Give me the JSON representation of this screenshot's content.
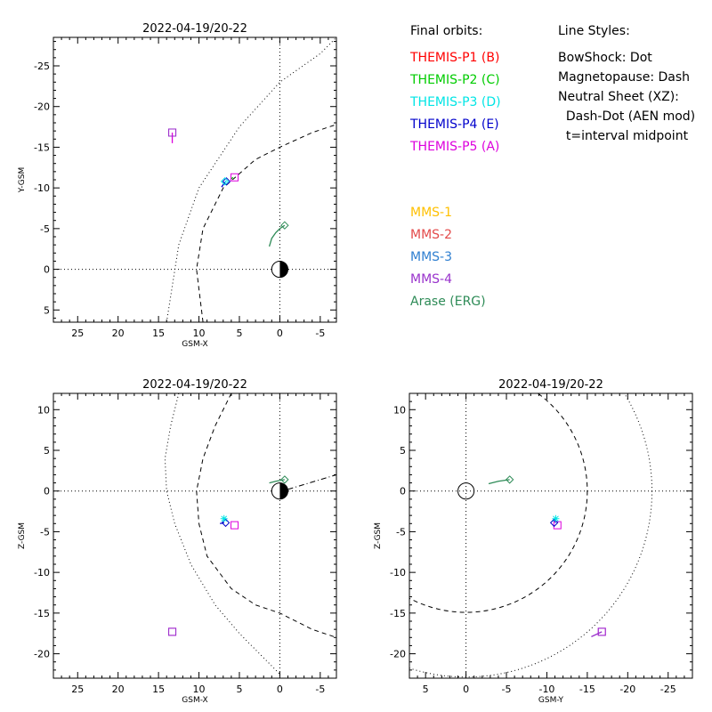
{
  "legend": {
    "orbits_title": "Final orbits:",
    "orbits": [
      {
        "label": "THEMIS-P1 (B)",
        "color": "#ff0000"
      },
      {
        "label": "THEMIS-P2 (C)",
        "color": "#00cc00"
      },
      {
        "label": "THEMIS-P3 (D)",
        "color": "#00e5e5"
      },
      {
        "label": "THEMIS-P4 (E)",
        "color": "#0000cc"
      },
      {
        "label": "THEMIS-P5 (A)",
        "color": "#dd00dd"
      }
    ],
    "missions": [
      {
        "label": "MMS-1",
        "color": "#ffc000"
      },
      {
        "label": "MMS-2",
        "color": "#e34a4a"
      },
      {
        "label": "MMS-3",
        "color": "#2f7fd0"
      },
      {
        "label": "MMS-4",
        "color": "#9933cc"
      },
      {
        "label": "Arase (ERG)",
        "color": "#2e8b57"
      }
    ],
    "styles_title": "Line Styles:",
    "styles": [
      "BowShock: Dot",
      "Magnetopause: Dash",
      "Neutral Sheet (XZ):",
      "  Dash-Dot (AEN mod)",
      "  t=interval midpoint"
    ]
  },
  "chart_data": [
    {
      "type": "scatter",
      "title": "2022-04-19/20-22",
      "xlabel": "GSM-X",
      "ylabel": "Y-GSM",
      "xlim": [
        28,
        -7
      ],
      "ylim": [
        6.5,
        -28.5
      ],
      "xticks": [
        25,
        20,
        15,
        10,
        5,
        0,
        -5
      ],
      "yticks": [
        5,
        0,
        -5,
        -10,
        -15,
        -20,
        -25
      ],
      "bowshock": {
        "x": [
          14,
          12.5,
          10,
          5,
          0,
          -5,
          -7
        ],
        "y": [
          6.5,
          -3,
          -10,
          -17.5,
          -23,
          -26.5,
          -28.5
        ]
      },
      "magnetopause": {
        "x": [
          9.5,
          10.3,
          9.5,
          7,
          3,
          0,
          -4,
          -7
        ],
        "y": [
          6.5,
          0,
          -5,
          -10,
          -13.5,
          -15,
          -16.8,
          -17.8
        ]
      },
      "earth": {
        "x": 0,
        "y": 0,
        "radius": 1
      },
      "tracks": [
        {
          "name": "THEMIS-P5 (A)",
          "color": "#dd00dd",
          "x": [
            13.3,
            13.3
          ],
          "y": [
            -15.5,
            -16.8
          ]
        },
        {
          "name": "THEMIS-P4 (E)",
          "color": "#0000cc",
          "x": [
            7.2,
            6.8
          ],
          "y": [
            -10.1,
            -10.7
          ]
        },
        {
          "name": "THEMIS-P3 (D)",
          "color": "#00e5e5",
          "x": [
            6.9,
            6.6
          ],
          "y": [
            -10.5,
            -10.9
          ]
        },
        {
          "name": "THEMIS-P2 (C)",
          "color": "#00cc00",
          "x": [
            6.0,
            5.8
          ],
          "y": [
            -11.1,
            -11.3
          ]
        },
        {
          "name": "MMS-4",
          "color": "#9933cc",
          "x": [
            13.3
          ],
          "y": [
            -16.8
          ]
        },
        {
          "name": "Arase (ERG)",
          "color": "#2e8b57",
          "x": [
            1.3,
            1.0,
            0.5,
            0.0,
            -0.6
          ],
          "y": [
            -2.8,
            -3.8,
            -4.5,
            -5.0,
            -5.4
          ]
        }
      ],
      "markers": [
        {
          "shape": "square",
          "color": "#dd00dd",
          "x": 13.3,
          "y": -16.8
        },
        {
          "shape": "square",
          "color": "#9933cc",
          "x": 13.3,
          "y": -16.8
        },
        {
          "shape": "square",
          "color": "#dd00dd",
          "x": 5.6,
          "y": -11.3
        },
        {
          "shape": "diamond",
          "color": "#0000cc",
          "x": 6.6,
          "y": -10.8
        },
        {
          "shape": "diamond",
          "color": "#00e5e5",
          "x": 6.8,
          "y": -10.8
        },
        {
          "shape": "diamond",
          "color": "#2e8b57",
          "x": -0.6,
          "y": -5.4
        }
      ]
    },
    {
      "type": "scatter",
      "title": "2022-04-19/20-22",
      "xlabel": "GSM-X",
      "ylabel": "Z-GSM",
      "xlim": [
        28,
        -7
      ],
      "ylim": [
        -23,
        12
      ],
      "xticks": [
        25,
        20,
        15,
        10,
        5,
        0,
        -5
      ],
      "yticks": [
        10,
        5,
        0,
        -5,
        -10,
        -15,
        -20
      ],
      "bowshock": {
        "x": [
          12.5,
          13.5,
          14.2,
          14,
          13,
          11,
          8,
          5,
          2,
          0
        ],
        "y": [
          12,
          8,
          4,
          0,
          -4,
          -9,
          -14,
          -17.5,
          -20.5,
          -22.5
        ]
      },
      "magnetopause": {
        "x": [
          6,
          8,
          9.5,
          10.3,
          10,
          9,
          6,
          3,
          0,
          -4,
          -7
        ],
        "y": [
          12,
          8,
          4,
          0,
          -4,
          -8,
          -12,
          -14,
          -15,
          -17,
          -18
        ]
      },
      "neutral_sheet": {
        "x": [
          -1,
          -3,
          -5,
          -7
        ],
        "y": [
          0.2,
          0.8,
          1.4,
          2.0
        ]
      },
      "earth": {
        "x": 0,
        "y": 0,
        "radius": 1
      },
      "tracks": [
        {
          "name": "Arase (ERG)",
          "color": "#2e8b57",
          "x": [
            1.3,
            0.5,
            -0.6
          ],
          "y": [
            1.0,
            1.2,
            1.4
          ]
        },
        {
          "name": "THEMIS-P4 (E)",
          "color": "#0000cc",
          "x": [
            7.4,
            6.9
          ],
          "y": [
            -4.0,
            -3.9
          ]
        },
        {
          "name": "THEMIS-P3 (D)",
          "color": "#00e5e5",
          "x": [
            7.0,
            6.8
          ],
          "y": [
            -3.8,
            -3.3
          ]
        }
      ],
      "markers": [
        {
          "shape": "square",
          "color": "#dd00dd",
          "x": 5.6,
          "y": -4.2
        },
        {
          "shape": "diamond",
          "color": "#0000cc",
          "x": 6.7,
          "y": -3.9
        },
        {
          "shape": "asterisk",
          "color": "#00e5e5",
          "x": 6.9,
          "y": -3.4
        },
        {
          "shape": "square",
          "color": "#dd00dd",
          "x": 13.3,
          "y": -17.3
        },
        {
          "shape": "square",
          "color": "#9933cc",
          "x": 13.3,
          "y": -17.3
        },
        {
          "shape": "diamond",
          "color": "#2e8b57",
          "x": -0.6,
          "y": 1.4
        }
      ]
    },
    {
      "type": "scatter",
      "title": "2022-04-19/20-22",
      "xlabel": "GSM-Y",
      "ylabel": "Z-GSM",
      "xlim": [
        7,
        -28
      ],
      "ylim": [
        -23,
        12
      ],
      "xticks": [
        5,
        0,
        -5,
        -10,
        -15,
        -20,
        -25
      ],
      "yticks": [
        10,
        5,
        0,
        -5,
        -10,
        -15,
        -20
      ],
      "bowshock_circle": {
        "cx": 0,
        "cy": 0,
        "r": 23
      },
      "magnetopause_circle": {
        "cx": 0,
        "cy": 0,
        "r": 15
      },
      "earth": {
        "x": 0,
        "y": 0,
        "radius": 1
      },
      "tracks": [
        {
          "name": "Arase (ERG)",
          "color": "#2e8b57",
          "x": [
            -2.8,
            -4.0,
            -5.4
          ],
          "y": [
            0.9,
            1.2,
            1.4
          ]
        },
        {
          "name": "THEMIS-P4 (E)",
          "color": "#0000cc",
          "x": [
            -10.8,
            -11.1
          ],
          "y": [
            -3.5,
            -3.9
          ]
        },
        {
          "name": "MMS-4",
          "color": "#9933cc",
          "x": [
            -15.5,
            -16.8
          ],
          "y": [
            -17.9,
            -17.3
          ]
        }
      ],
      "markers": [
        {
          "shape": "diamond",
          "color": "#2e8b57",
          "x": -5.4,
          "y": 1.4
        },
        {
          "shape": "square",
          "color": "#dd00dd",
          "x": -11.3,
          "y": -4.2
        },
        {
          "shape": "diamond",
          "color": "#0000cc",
          "x": -10.9,
          "y": -3.9
        },
        {
          "shape": "asterisk",
          "color": "#00e5e5",
          "x": -11.1,
          "y": -3.4
        },
        {
          "shape": "square",
          "color": "#dd00dd",
          "x": -16.8,
          "y": -17.3
        },
        {
          "shape": "square",
          "color": "#9933cc",
          "x": -16.8,
          "y": -17.3
        }
      ]
    }
  ]
}
